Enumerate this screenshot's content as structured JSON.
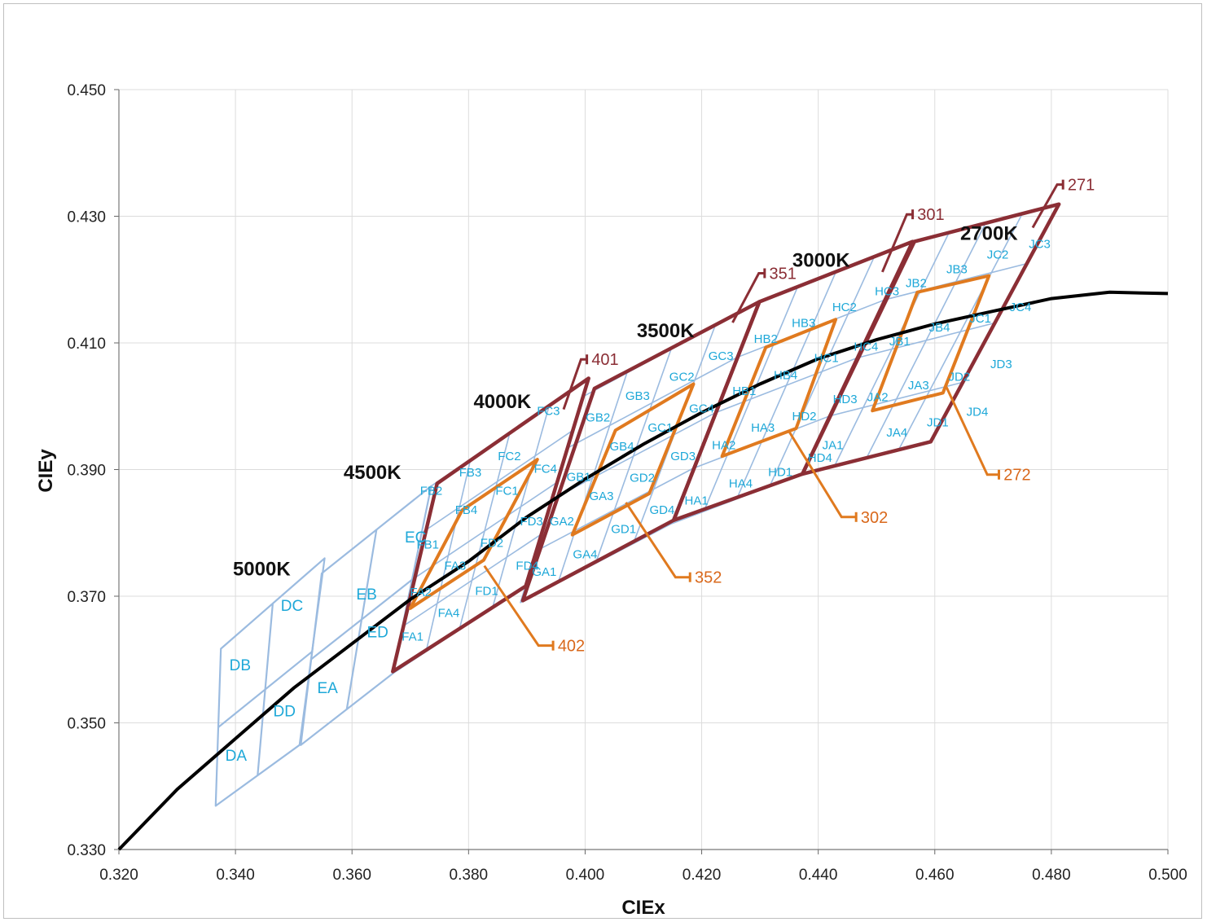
{
  "colors": {
    "grid": "#dcdcdc",
    "locus": "#000000",
    "cell": "#9bbbe0",
    "anis_outer": "#8b2e35",
    "anis_inner": "#e07a1f",
    "cell_label": "#1ea8d8"
  },
  "chart_data": {
    "type": "scatter",
    "xlabel": "CIEx",
    "ylabel": "CIEy",
    "xlim": [
      0.32,
      0.5
    ],
    "ylim": [
      0.33,
      0.45
    ],
    "x_ticks": [
      "0.320",
      "0.340",
      "0.360",
      "0.380",
      "0.400",
      "0.420",
      "0.440",
      "0.460",
      "0.480",
      "0.500"
    ],
    "y_ticks": [
      "0.330",
      "0.350",
      "0.370",
      "0.390",
      "0.410",
      "0.430",
      "0.450"
    ],
    "grid": true,
    "locus": [
      [
        0.32,
        0.33
      ],
      [
        0.33,
        0.3395
      ],
      [
        0.34,
        0.3475
      ],
      [
        0.35,
        0.3555
      ],
      [
        0.36,
        0.3625
      ],
      [
        0.37,
        0.3695
      ],
      [
        0.38,
        0.3755
      ],
      [
        0.39,
        0.3825
      ],
      [
        0.4,
        0.3885
      ],
      [
        0.41,
        0.394
      ],
      [
        0.42,
        0.399
      ],
      [
        0.43,
        0.4035
      ],
      [
        0.44,
        0.4075
      ],
      [
        0.45,
        0.4105
      ],
      [
        0.46,
        0.413
      ],
      [
        0.47,
        0.415
      ],
      [
        0.48,
        0.417
      ],
      [
        0.49,
        0.418
      ],
      [
        0.5,
        0.4178
      ]
    ],
    "cct_labels": [
      {
        "text": "5000K",
        "x": 0.3445,
        "y": 0.3733
      },
      {
        "text": "4500K",
        "x": 0.3635,
        "y": 0.3885
      },
      {
        "text": "4000K",
        "x": 0.3858,
        "y": 0.3997
      },
      {
        "text": "3500K",
        "x": 0.4138,
        "y": 0.4109
      },
      {
        "text": "3000K",
        "x": 0.4405,
        "y": 0.422
      },
      {
        "text": "2700K",
        "x": 0.4693,
        "y": 0.4263
      }
    ],
    "bin_labels": [
      {
        "text": "DB",
        "x": 0.3408,
        "y": 0.3583
      },
      {
        "text": "DC",
        "x": 0.3497,
        "y": 0.3677
      },
      {
        "text": "DA",
        "x": 0.3401,
        "y": 0.344
      },
      {
        "text": "DD",
        "x": 0.3484,
        "y": 0.351
      },
      {
        "text": "EB",
        "x": 0.3625,
        "y": 0.3695
      },
      {
        "text": "EC",
        "x": 0.3709,
        "y": 0.3785
      },
      {
        "text": "EA",
        "x": 0.3558,
        "y": 0.3547
      },
      {
        "text": "ED",
        "x": 0.3644,
        "y": 0.3635
      },
      {
        "text": "FC3",
        "x": 0.3937,
        "y": 0.3986
      },
      {
        "text": "FC2",
        "x": 0.387,
        "y": 0.3915
      },
      {
        "text": "FB3",
        "x": 0.3803,
        "y": 0.3889
      },
      {
        "text": "FB2",
        "x": 0.3736,
        "y": 0.386
      },
      {
        "text": "FC1",
        "x": 0.3866,
        "y": 0.386
      },
      {
        "text": "FB4",
        "x": 0.3796,
        "y": 0.383
      },
      {
        "text": "FB1",
        "x": 0.373,
        "y": 0.3775
      },
      {
        "text": "FC4",
        "x": 0.3932,
        "y": 0.3895
      },
      {
        "text": "FD3",
        "x": 0.3908,
        "y": 0.3812
      },
      {
        "text": "FD2",
        "x": 0.384,
        "y": 0.3778
      },
      {
        "text": "FA3",
        "x": 0.3777,
        "y": 0.3742
      },
      {
        "text": "FA2",
        "x": 0.3718,
        "y": 0.37
      },
      {
        "text": "FD4",
        "x": 0.3901,
        "y": 0.3742
      },
      {
        "text": "FD1",
        "x": 0.3831,
        "y": 0.3702
      },
      {
        "text": "FA4",
        "x": 0.3766,
        "y": 0.3667
      },
      {
        "text": "FA1",
        "x": 0.3704,
        "y": 0.363
      },
      {
        "text": "GB2",
        "x": 0.4022,
        "y": 0.3976
      },
      {
        "text": "GB3",
        "x": 0.409,
        "y": 0.401
      },
      {
        "text": "GC2",
        "x": 0.4166,
        "y": 0.404
      },
      {
        "text": "GC3",
        "x": 0.4233,
        "y": 0.4073
      },
      {
        "text": "GB1",
        "x": 0.3989,
        "y": 0.3882
      },
      {
        "text": "GB4",
        "x": 0.4063,
        "y": 0.393
      },
      {
        "text": "GC1",
        "x": 0.4129,
        "y": 0.396
      },
      {
        "text": "GC4",
        "x": 0.42,
        "y": 0.399
      },
      {
        "text": "GA2",
        "x": 0.396,
        "y": 0.3812
      },
      {
        "text": "GA3",
        "x": 0.4028,
        "y": 0.3852
      },
      {
        "text": "GD2",
        "x": 0.4098,
        "y": 0.3881
      },
      {
        "text": "GD3",
        "x": 0.4168,
        "y": 0.3915
      },
      {
        "text": "GA1",
        "x": 0.393,
        "y": 0.3732
      },
      {
        "text": "GA4",
        "x": 0.4,
        "y": 0.376
      },
      {
        "text": "GD1",
        "x": 0.4066,
        "y": 0.38
      },
      {
        "text": "GD4",
        "x": 0.4132,
        "y": 0.383
      },
      {
        "text": "HB2",
        "x": 0.431,
        "y": 0.41
      },
      {
        "text": "HB3",
        "x": 0.4375,
        "y": 0.4125
      },
      {
        "text": "HC2",
        "x": 0.4445,
        "y": 0.415
      },
      {
        "text": "HC3",
        "x": 0.4518,
        "y": 0.4175
      },
      {
        "text": "HB1",
        "x": 0.4273,
        "y": 0.4018
      },
      {
        "text": "HB4",
        "x": 0.4344,
        "y": 0.4043
      },
      {
        "text": "HC1",
        "x": 0.4414,
        "y": 0.407
      },
      {
        "text": "HC4",
        "x": 0.4482,
        "y": 0.4088
      },
      {
        "text": "HA2",
        "x": 0.4238,
        "y": 0.3932
      },
      {
        "text": "HA3",
        "x": 0.4305,
        "y": 0.396
      },
      {
        "text": "HD2",
        "x": 0.4376,
        "y": 0.3978
      },
      {
        "text": "HD3",
        "x": 0.4446,
        "y": 0.4005
      },
      {
        "text": "HA1",
        "x": 0.4191,
        "y": 0.3845
      },
      {
        "text": "HA4",
        "x": 0.4267,
        "y": 0.3872
      },
      {
        "text": "HD1",
        "x": 0.4335,
        "y": 0.389
      },
      {
        "text": "HD4",
        "x": 0.4403,
        "y": 0.3912
      },
      {
        "text": "JB2",
        "x": 0.4568,
        "y": 0.4188
      },
      {
        "text": "JB3",
        "x": 0.4638,
        "y": 0.421
      },
      {
        "text": "JC2",
        "x": 0.4708,
        "y": 0.4233
      },
      {
        "text": "JC3",
        "x": 0.478,
        "y": 0.425
      },
      {
        "text": "JB1",
        "x": 0.454,
        "y": 0.4096
      },
      {
        "text": "JB4",
        "x": 0.4608,
        "y": 0.4118
      },
      {
        "text": "JC1",
        "x": 0.4678,
        "y": 0.4132
      },
      {
        "text": "JC4",
        "x": 0.4747,
        "y": 0.415
      },
      {
        "text": "JA2",
        "x": 0.4502,
        "y": 0.4008
      },
      {
        "text": "JA3",
        "x": 0.4572,
        "y": 0.4027
      },
      {
        "text": "JD2",
        "x": 0.4642,
        "y": 0.404
      },
      {
        "text": "JD3",
        "x": 0.4714,
        "y": 0.406
      },
      {
        "text": "JA1",
        "x": 0.4425,
        "y": 0.3932
      },
      {
        "text": "JA4",
        "x": 0.4535,
        "y": 0.3952
      },
      {
        "text": "JD1",
        "x": 0.4605,
        "y": 0.3968
      },
      {
        "text": "JD4",
        "x": 0.4673,
        "y": 0.3985
      }
    ],
    "callouts": [
      {
        "text": "401",
        "color": "red",
        "line": [
          [
            0.3963,
            0.3995
          ],
          [
            0.3993,
            0.4074
          ],
          [
            0.4003,
            0.4074
          ]
        ],
        "tx": 0.4011,
        "ty": 0.4074
      },
      {
        "text": "351",
        "color": "red",
        "line": [
          [
            0.4253,
            0.4132
          ],
          [
            0.4298,
            0.421
          ],
          [
            0.4308,
            0.421
          ]
        ],
        "tx": 0.4316,
        "ty": 0.421
      },
      {
        "text": "301",
        "color": "red",
        "line": [
          [
            0.451,
            0.4212
          ],
          [
            0.4552,
            0.4303
          ],
          [
            0.4562,
            0.4303
          ]
        ],
        "tx": 0.457,
        "ty": 0.4303
      },
      {
        "text": "271",
        "color": "red",
        "line": [
          [
            0.4768,
            0.4282
          ],
          [
            0.481,
            0.435
          ],
          [
            0.482,
            0.435
          ]
        ],
        "tx": 0.4828,
        "ty": 0.435
      },
      {
        "text": "402",
        "color": "orange",
        "line": [
          [
            0.3827,
            0.3748
          ],
          [
            0.392,
            0.3622
          ],
          [
            0.3945,
            0.3622
          ]
        ],
        "tx": 0.3953,
        "ty": 0.3622
      },
      {
        "text": "352",
        "color": "orange",
        "line": [
          [
            0.407,
            0.3848
          ],
          [
            0.4155,
            0.373
          ],
          [
            0.418,
            0.373
          ]
        ],
        "tx": 0.4188,
        "ty": 0.373
      },
      {
        "text": "302",
        "color": "orange",
        "line": [
          [
            0.435,
            0.396
          ],
          [
            0.444,
            0.3825
          ],
          [
            0.4465,
            0.3825
          ]
        ],
        "tx": 0.4473,
        "ty": 0.3825
      },
      {
        "text": "272",
        "color": "orange",
        "line": [
          [
            0.462,
            0.403
          ],
          [
            0.469,
            0.3892
          ],
          [
            0.471,
            0.3892
          ]
        ],
        "tx": 0.4718,
        "ty": 0.3892
      }
    ]
  }
}
